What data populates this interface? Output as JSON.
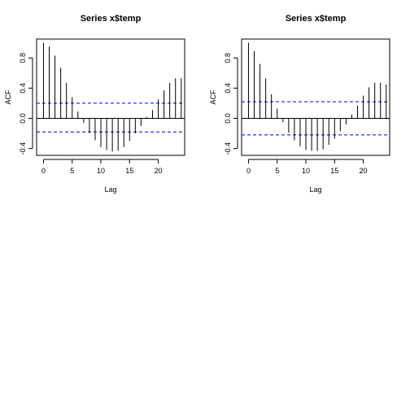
{
  "chart_data": [
    {
      "type": "bar",
      "title": "Series  x$temp",
      "xlabel": "Lag",
      "ylabel": "ACF",
      "xlim": [
        -1.2,
        24.6
      ],
      "ylim": [
        -0.49,
        1.05
      ],
      "xticks": [
        0,
        5,
        10,
        15,
        20
      ],
      "yticks": [
        -0.4,
        0.0,
        0.4,
        0.8
      ],
      "ytick_labels": [
        "-0.4",
        "0.0",
        "0.4",
        "0.8"
      ],
      "grid": false,
      "x": [
        0,
        1,
        2,
        3,
        4,
        5,
        6,
        7,
        8,
        9,
        10,
        11,
        12,
        13,
        14,
        15,
        16,
        17,
        18,
        19,
        20,
        21,
        22,
        23,
        24
      ],
      "values": [
        1.0,
        0.95,
        0.83,
        0.67,
        0.47,
        0.28,
        0.09,
        -0.06,
        -0.19,
        -0.29,
        -0.38,
        -0.42,
        -0.44,
        -0.43,
        -0.38,
        -0.3,
        -0.2,
        -0.1,
        0.02,
        0.11,
        0.25,
        0.37,
        0.47,
        0.53,
        0.53
      ],
      "ci_upper": 0.2,
      "ci_lower": -0.18
    },
    {
      "type": "bar",
      "title": "Series  x$temp",
      "xlabel": "Lag",
      "ylabel": "ACF",
      "xlim": [
        -1.2,
        24.6
      ],
      "ylim": [
        -0.49,
        1.05
      ],
      "xticks": [
        0,
        5,
        10,
        15,
        20
      ],
      "yticks": [
        -0.4,
        0.0,
        0.4,
        0.8
      ],
      "ytick_labels": [
        "-0.4",
        "0.0",
        "0.4",
        "0.8"
      ],
      "grid": false,
      "x": [
        0,
        1,
        2,
        3,
        4,
        5,
        6,
        7,
        8,
        9,
        10,
        11,
        12,
        13,
        14,
        15,
        16,
        17,
        18,
        19,
        20,
        21,
        22,
        23,
        24
      ],
      "values": [
        1.0,
        0.89,
        0.72,
        0.53,
        0.32,
        0.13,
        -0.05,
        -0.19,
        -0.29,
        -0.37,
        -0.42,
        -0.43,
        -0.43,
        -0.41,
        -0.35,
        -0.27,
        -0.17,
        -0.08,
        0.05,
        0.17,
        0.3,
        0.41,
        0.47,
        0.47,
        0.45
      ],
      "ci_upper": 0.22,
      "ci_lower": -0.22
    }
  ],
  "colors": {
    "bar": "#000000",
    "ci_line": "#0000cc",
    "zero_line": "#000000",
    "frame": "#000000"
  }
}
